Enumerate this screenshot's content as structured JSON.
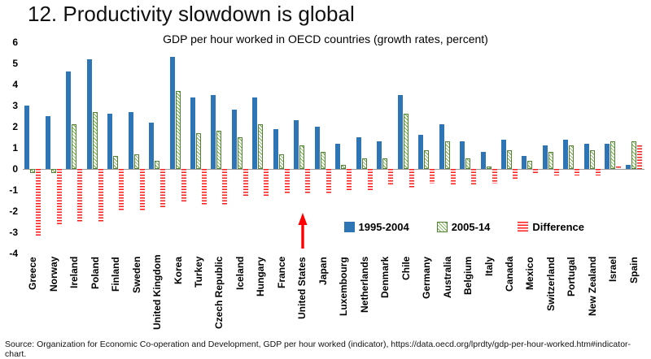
{
  "page_title": "12. Productivity slowdown is global",
  "source": "Source: Organization for Economic Co-operation and Development, GDP per hour worked (indicator), https://data.oecd.org/lprdty/gdp-per-hour-worked.htm#indicator-chart.",
  "chart_data": {
    "type": "bar",
    "title": "GDP per hour worked in OECD countries (growth rates, percent)",
    "xlabel": "",
    "ylabel": "",
    "ylim": [
      -4,
      6
    ],
    "yticks": [
      6,
      5,
      4,
      3,
      2,
      1,
      0,
      -1,
      -2,
      -3,
      -4
    ],
    "grid": false,
    "legend_position": "inside-bottom-right",
    "categories": [
      "Greece",
      "Norway",
      "Ireland",
      "Poland",
      "Finland",
      "Sweden",
      "United Kingdom",
      "Korea",
      "Turkey",
      "Czech Republic",
      "Iceland",
      "Hungary",
      "France",
      "United States",
      "Japan",
      "Luxembourg",
      "Netherlands",
      "Denmark",
      "Chile",
      "Germany",
      "Australia",
      "Belgium",
      "Italy",
      "Canada",
      "Mexico",
      "Switzerland",
      "Portugal",
      "New Zealand",
      "Israel",
      "Spain"
    ],
    "series": [
      {
        "name": "1995-2004",
        "color": "#2E75B6",
        "style": "solid",
        "values": [
          3.0,
          2.5,
          4.6,
          5.2,
          2.6,
          2.7,
          2.2,
          5.3,
          3.4,
          3.5,
          2.8,
          3.4,
          1.9,
          2.3,
          2.0,
          1.2,
          1.5,
          1.3,
          3.5,
          1.6,
          2.1,
          1.3,
          0.8,
          1.4,
          0.6,
          1.1,
          1.4,
          1.2,
          1.2,
          0.2
        ]
      },
      {
        "name": "2005-14",
        "color": "#70AD47",
        "style": "diagonal-hatch",
        "values": [
          -0.2,
          -0.2,
          2.1,
          2.7,
          0.6,
          0.7,
          0.4,
          3.7,
          1.7,
          1.8,
          1.5,
          2.1,
          0.7,
          1.1,
          0.8,
          0.2,
          0.5,
          0.5,
          2.6,
          0.9,
          1.3,
          0.5,
          0.1,
          0.9,
          0.4,
          0.8,
          1.1,
          0.9,
          1.3,
          1.3
        ]
      },
      {
        "name": "Difference",
        "color": "#FF0000",
        "style": "horizontal-hatch",
        "values": [
          -3.2,
          -2.7,
          -2.5,
          -2.5,
          -2.0,
          -2.0,
          -1.8,
          -1.6,
          -1.7,
          -1.7,
          -1.3,
          -1.3,
          -1.2,
          -1.2,
          -1.2,
          -1.0,
          -1.0,
          -0.8,
          -0.9,
          -0.7,
          -0.8,
          -0.8,
          -0.7,
          -0.5,
          -0.2,
          -0.3,
          -0.3,
          -0.3,
          0.1,
          1.1
        ]
      }
    ],
    "annotation": {
      "type": "arrow-up",
      "target": "United States",
      "color": "#FF0000"
    }
  }
}
